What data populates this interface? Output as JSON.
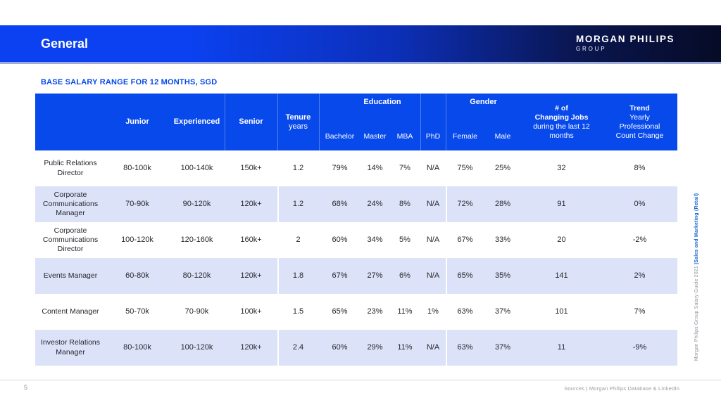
{
  "header": {
    "title": "General",
    "logo_line1": "MORGAN PHILIPS",
    "logo_line2": "GROUP"
  },
  "section": {
    "title": "BASE SALARY RANGE FOR 12 MONTHS, SGD"
  },
  "table": {
    "groups": {
      "education": "Education",
      "gender": "Gender"
    },
    "columns": {
      "junior": "Junior",
      "experienced": "Experienced",
      "senior": "Senior",
      "tenure_line1": "Tenure",
      "tenure_line2": "years",
      "bachelor": "Bachelor",
      "master": "Master",
      "mba": "MBA",
      "phd": "PhD",
      "female": "Female",
      "male": "Male",
      "changing_line1": "# of",
      "changing_line2": "Changing Jobs",
      "changing_line3": "during the last 12 months",
      "trend_line1": "Trend",
      "trend_line2": "Yearly",
      "trend_line3": "Professional",
      "trend_line4": "Count Change"
    },
    "rows": [
      {
        "cells": [
          "Public Relations Director",
          "80-100k",
          "100-140k",
          "150k+",
          "1.2",
          "79%",
          "14%",
          "7%",
          "N/A",
          "75%",
          "25%",
          "32",
          "8%"
        ]
      },
      {
        "cells": [
          "Corporate Communications Manager",
          "70-90k",
          "90-120k",
          "120k+",
          "1.2",
          "68%",
          "24%",
          "8%",
          "N/A",
          "72%",
          "28%",
          "91",
          "0%"
        ]
      },
      {
        "cells": [
          "Corporate Communications Director",
          "100-120k",
          "120-160k",
          "160k+",
          "2",
          "60%",
          "34%",
          "5%",
          "N/A",
          "67%",
          "33%",
          "20",
          "-2%"
        ]
      },
      {
        "cells": [
          "Events Manager",
          "60-80k",
          "80-120k",
          "120k+",
          "1.8",
          "67%",
          "27%",
          "6%",
          "N/A",
          "65%",
          "35%",
          "141",
          "2%"
        ]
      },
      {
        "cells": [
          "Content Manager",
          "50-70k",
          "70-90k",
          "100k+",
          "1.5",
          "65%",
          "23%",
          "11%",
          "1%",
          "63%",
          "37%",
          "101",
          "7%"
        ]
      },
      {
        "cells": [
          "Investor Relations Manager",
          "80-100k",
          "100-120k",
          "120k+",
          "2.4",
          "60%",
          "29%",
          "11%",
          "N/A",
          "63%",
          "37%",
          "11",
          "-9%"
        ]
      }
    ]
  },
  "sidebar": {
    "gray_text": "Morgan Philips Group Salary Guide 2021 ",
    "blue_text": "|Sales and Marketing (Retail)"
  },
  "footer": {
    "page_number": "5",
    "sources": "Sources | Morgan Philips Database & LinkedIn"
  },
  "colors": {
    "banner_blue": "#0b41f0",
    "banner_dark": "#060b26",
    "table_header_blue": "#0849ec",
    "alt_row_blue": "#dce3f8",
    "section_title_blue": "#0547e8",
    "sidebar_blue": "#1565cf"
  }
}
